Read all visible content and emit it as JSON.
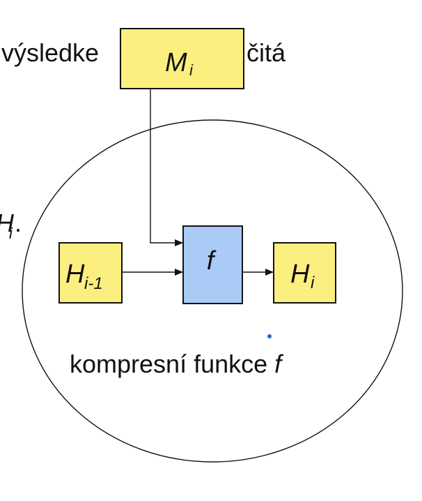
{
  "slide": {
    "top_text_left": "výsledke",
    "top_text_right": "čitá",
    "left_partial_var": "H",
    "left_partial_sub": "i",
    "left_partial_punct": "."
  },
  "diagram": {
    "message_block": {
      "var": "M",
      "sub": "i"
    },
    "prev_hash_block": {
      "var": "H",
      "sub": "i-1"
    },
    "function_block": {
      "label": "f"
    },
    "next_hash_block": {
      "var": "H",
      "sub": "i"
    },
    "caption": {
      "text": "kompresní funkce ",
      "var": "f"
    }
  },
  "colors": {
    "hash_box_fill": "#fbef7f",
    "function_box_fill": "#a9cbf5",
    "stroke": "#111111",
    "pointer_dot": "#2b5fd0"
  }
}
